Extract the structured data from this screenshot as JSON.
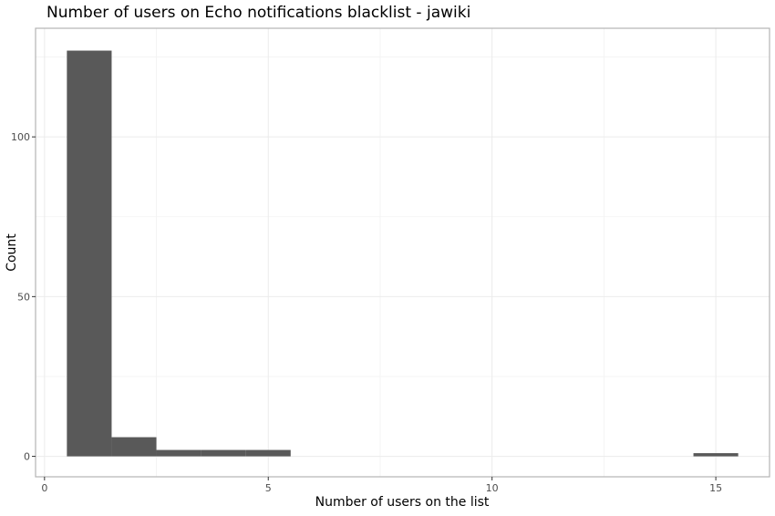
{
  "chart_data": {
    "type": "bar",
    "title": "Number of users on Echo notifications blacklist - jawiki",
    "xlabel": "Number of users on the list",
    "ylabel": "Count",
    "xlim": [
      -0.2,
      16.2
    ],
    "ylim": [
      -6.4,
      134.0
    ],
    "x_ticks": [
      0,
      5,
      10,
      15
    ],
    "x_minor": [
      2.5,
      7.5,
      12.5
    ],
    "y_ticks": [
      0,
      50,
      100
    ],
    "y_minor": [
      25,
      75,
      125
    ],
    "grid": true,
    "bar_color": "#595959",
    "bins": [
      {
        "x": 1,
        "count": 127
      },
      {
        "x": 2,
        "count": 6
      },
      {
        "x": 3,
        "count": 2
      },
      {
        "x": 4,
        "count": 2
      },
      {
        "x": 5,
        "count": 2
      },
      {
        "x": 15,
        "count": 1
      }
    ]
  }
}
